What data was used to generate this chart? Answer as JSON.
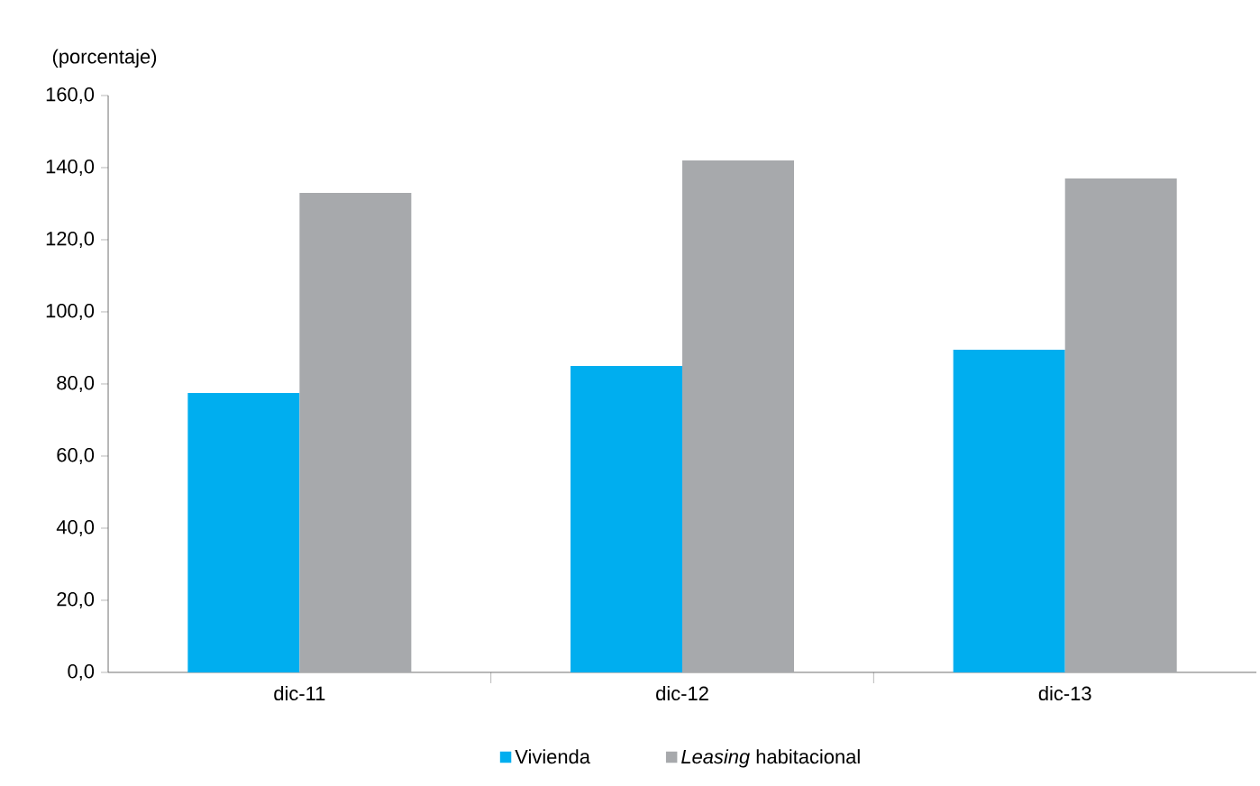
{
  "chart_data": {
    "type": "bar",
    "ylabel": "(porcentaje)",
    "categories": [
      "dic-11",
      "dic-12",
      "dic-13"
    ],
    "series": [
      {
        "name": "Vivienda",
        "color": "#00aeef",
        "values": [
          77.5,
          85,
          89.5
        ]
      },
      {
        "name": "*Leasing* habitacional",
        "color": "#a7a9ac",
        "values": [
          133,
          142,
          137
        ]
      }
    ],
    "ylim": [
      0,
      160
    ],
    "yticks": [
      {
        "value": 0,
        "label": "0,0"
      },
      {
        "value": 20,
        "label": "20,0"
      },
      {
        "value": 40,
        "label": "40,0"
      },
      {
        "value": 60,
        "label": "60,0"
      },
      {
        "value": 80,
        "label": "80,0"
      },
      {
        "value": 100,
        "label": "100,0"
      },
      {
        "value": 120,
        "label": "120,0"
      },
      {
        "value": 140,
        "label": "140,0"
      },
      {
        "value": 160,
        "label": "160,0"
      }
    ],
    "legend": "bottom"
  }
}
